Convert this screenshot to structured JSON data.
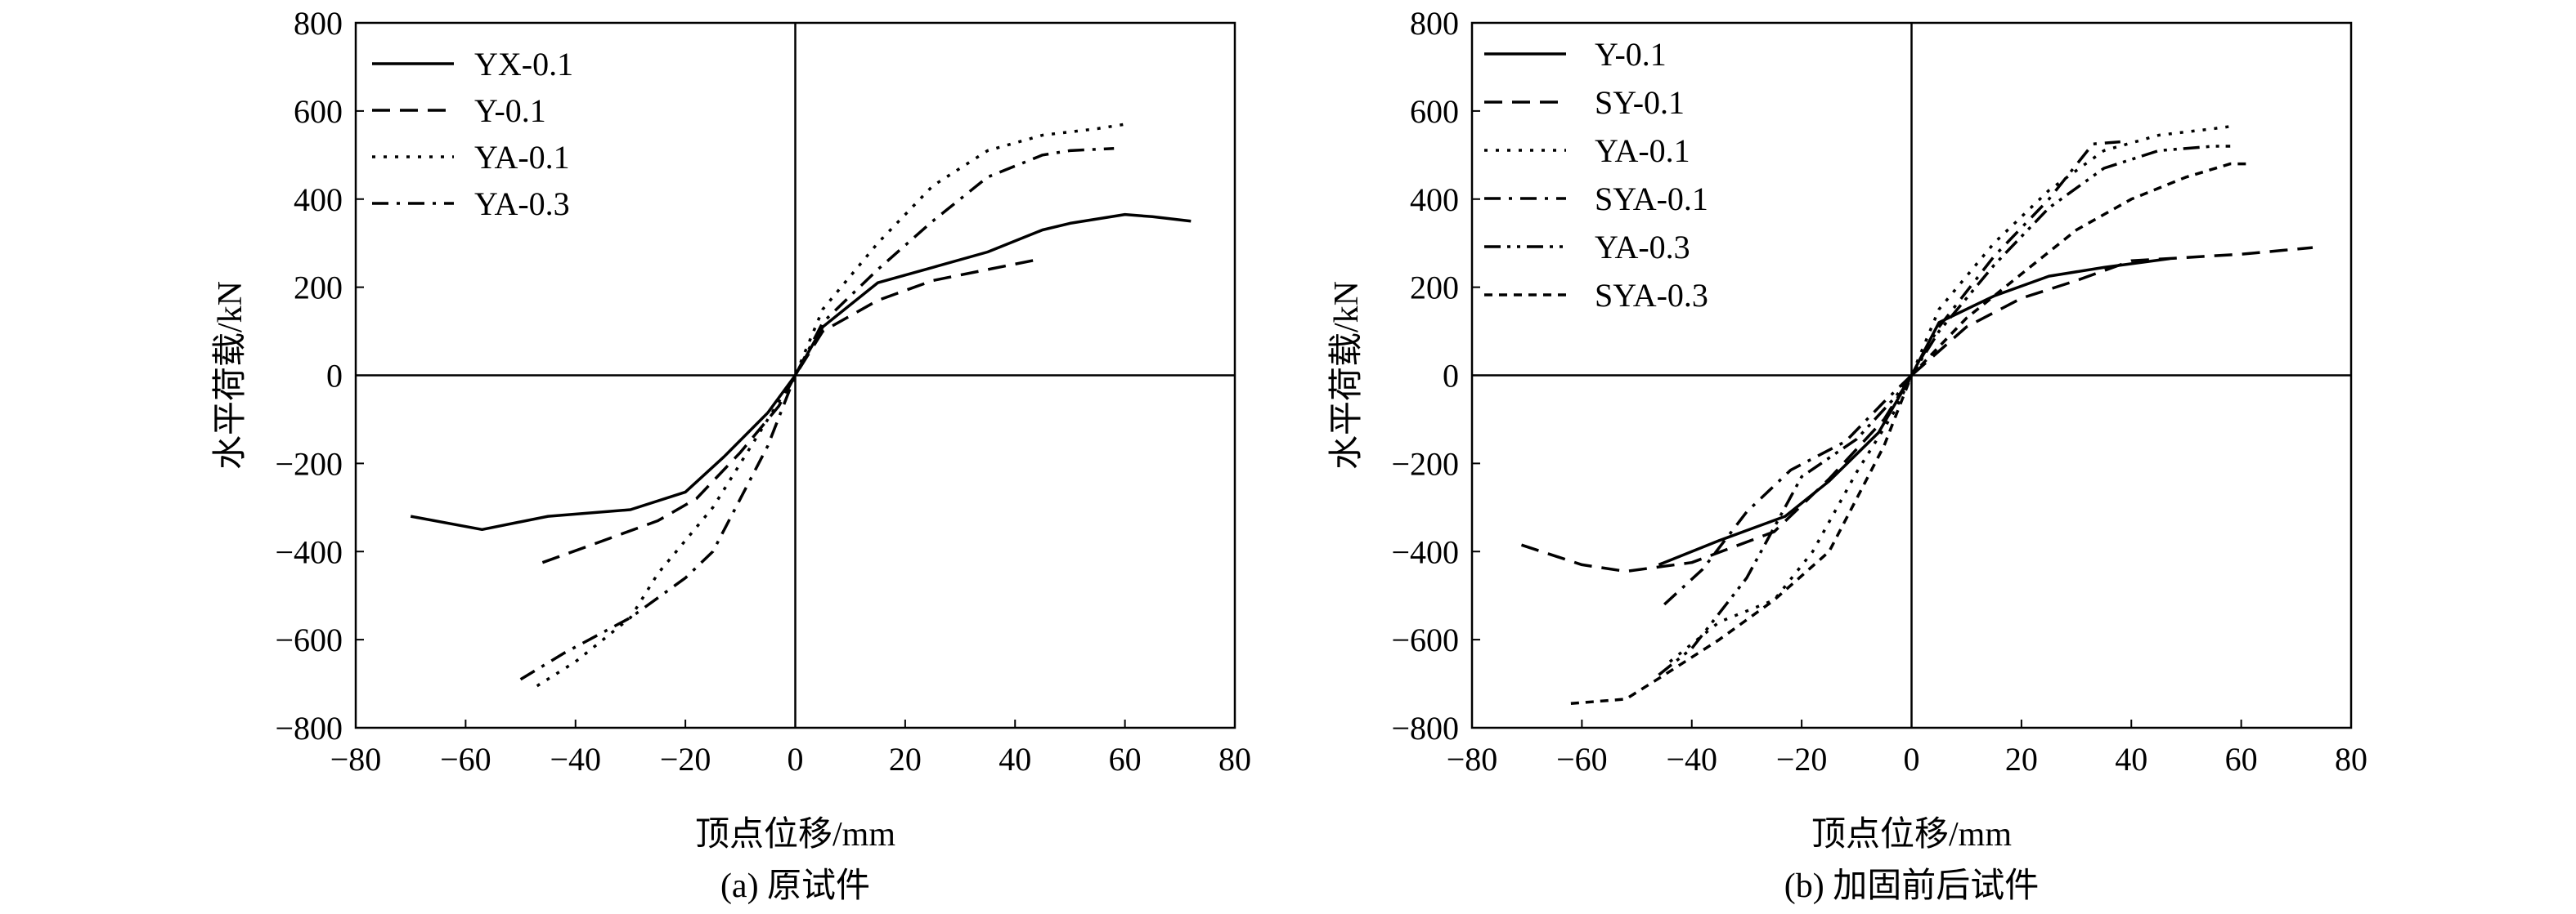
{
  "line_styles": {
    "solid": "",
    "dash": "22 12",
    "dot": "4 10",
    "dashdot": "20 10 4 10",
    "dashdotdot": "20 8 4 8 4 8",
    "shortdash": "10 8"
  },
  "chart_data": [
    {
      "type": "line",
      "caption": "(a) 原试件",
      "xlabel": "顶点位移/mm",
      "ylabel": "水平荷载/kN",
      "xlim": [
        -80,
        80
      ],
      "ylim": [
        -800,
        800
      ],
      "xticks": [
        -80,
        -60,
        -40,
        -20,
        0,
        20,
        40,
        60,
        80
      ],
      "yticks": [
        -800,
        -600,
        -400,
        -200,
        0,
        200,
        400,
        600,
        800
      ],
      "x_tick_labels": [
        "−80",
        "−60",
        "−40",
        "−20",
        "0",
        "20",
        "40",
        "60",
        "80"
      ],
      "y_tick_labels": [
        "−800",
        "−600",
        "−400",
        "−200",
        "0",
        "200",
        "400",
        "600",
        "800"
      ],
      "grid": false,
      "legend_position": "top-left",
      "series": [
        {
          "name": "YX-0.1",
          "style": "solid",
          "x": [
            -70,
            -57,
            -45,
            -30,
            -20,
            -13,
            -5,
            0,
            5,
            15,
            25,
            35,
            45,
            50,
            60,
            65,
            72
          ],
          "y": [
            -320,
            -350,
            -320,
            -305,
            -265,
            -185,
            -85,
            0,
            110,
            210,
            245,
            280,
            330,
            345,
            365,
            360,
            350
          ]
        },
        {
          "name": "Y-0.1",
          "style": "dash",
          "x": [
            -46,
            -36,
            -25,
            -18,
            -10,
            -3,
            0,
            5,
            15,
            25,
            35,
            45
          ],
          "y": [
            -425,
            -380,
            -330,
            -280,
            -175,
            -70,
            0,
            100,
            170,
            215,
            240,
            265
          ]
        },
        {
          "name": "YA-0.1",
          "style": "dot",
          "x": [
            -47,
            -40,
            -30,
            -25,
            -15,
            -5,
            0,
            5,
            15,
            25,
            35,
            45,
            55,
            60
          ],
          "y": [
            -705,
            -650,
            -550,
            -450,
            -300,
            -100,
            0,
            150,
            300,
            430,
            510,
            545,
            560,
            570
          ]
        },
        {
          "name": "YA-0.3",
          "style": "dashdot",
          "x": [
            -50,
            -42,
            -30,
            -20,
            -15,
            -5,
            0,
            5,
            15,
            25,
            35,
            45,
            50,
            58
          ],
          "y": [
            -690,
            -630,
            -550,
            -460,
            -400,
            -160,
            0,
            120,
            240,
            350,
            450,
            500,
            510,
            515
          ]
        }
      ]
    },
    {
      "type": "line",
      "caption": "(b) 加固前后试件",
      "xlabel": "顶点位移/mm",
      "ylabel": "水平荷载/kN",
      "xlim": [
        -80,
        80
      ],
      "ylim": [
        -800,
        800
      ],
      "xticks": [
        -80,
        -60,
        -40,
        -20,
        0,
        20,
        40,
        60,
        80
      ],
      "yticks": [
        -800,
        -600,
        -400,
        -200,
        0,
        200,
        400,
        600,
        800
      ],
      "x_tick_labels": [
        "−80",
        "−60",
        "−40",
        "−20",
        "0",
        "20",
        "40",
        "60",
        "80"
      ],
      "y_tick_labels": [
        "−800",
        "−600",
        "−400",
        "−200",
        "0",
        "200",
        "400",
        "600",
        "800"
      ],
      "grid": false,
      "legend_position": "top-left",
      "series": [
        {
          "name": "Y-0.1",
          "style": "solid",
          "x": [
            -46,
            -35,
            -23,
            -15,
            -6,
            0,
            5,
            15,
            25,
            35,
            47
          ],
          "y": [
            -430,
            -375,
            -320,
            -240,
            -130,
            0,
            120,
            180,
            225,
            245,
            265
          ]
        },
        {
          "name": "SY-0.1",
          "style": "dash",
          "x": [
            -71,
            -60,
            -52,
            -40,
            -25,
            -15,
            -5,
            0,
            10,
            20,
            30,
            40,
            60,
            73
          ],
          "y": [
            -385,
            -430,
            -445,
            -425,
            -355,
            -235,
            -100,
            0,
            110,
            175,
            215,
            260,
            275,
            290
          ]
        },
        {
          "name": "YA-0.1",
          "style": "dot",
          "x": [
            -44,
            -35,
            -25,
            -18,
            -10,
            -3,
            0,
            5,
            15,
            25,
            35,
            45,
            55,
            58
          ],
          "y": [
            -650,
            -560,
            -510,
            -400,
            -220,
            -80,
            0,
            150,
            300,
            420,
            510,
            545,
            560,
            565
          ]
        },
        {
          "name": "SYA-0.1",
          "style": "dashdot",
          "x": [
            -45,
            -38,
            -30,
            -22,
            -12,
            -5,
            0,
            5,
            15,
            25,
            33,
            38
          ],
          "y": [
            -520,
            -440,
            -310,
            -215,
            -150,
            -60,
            0,
            110,
            270,
            400,
            525,
            530
          ]
        },
        {
          "name": "YA-0.3",
          "style": "dashdotdot",
          "x": [
            -46,
            -40,
            -30,
            -20,
            -10,
            -3,
            0,
            5,
            15,
            25,
            35,
            45,
            55,
            58
          ],
          "y": [
            -680,
            -620,
            -460,
            -230,
            -145,
            -50,
            0,
            100,
            250,
            380,
            470,
            510,
            520,
            520
          ]
        },
        {
          "name": "SYA-0.3",
          "style": "shortdash",
          "x": [
            -62,
            -52,
            -45,
            -35,
            -25,
            -15,
            -5,
            0,
            10,
            20,
            30,
            40,
            50,
            58,
            62
          ],
          "y": [
            -745,
            -735,
            -680,
            -600,
            -510,
            -400,
            -160,
            0,
            130,
            230,
            330,
            400,
            450,
            480,
            480
          ]
        }
      ]
    }
  ]
}
